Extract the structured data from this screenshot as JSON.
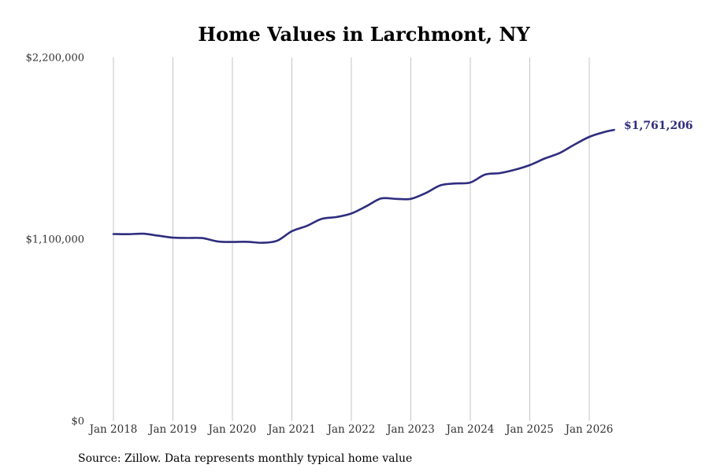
{
  "chart_data": {
    "type": "line",
    "title": "Home Values in Larchmont, NY",
    "xlabel": "",
    "ylabel": "",
    "ylim": [
      0,
      2200000
    ],
    "y_ticks": [
      {
        "value": 0,
        "label": "$0"
      },
      {
        "value": 1100000,
        "label": "$1,100,000"
      },
      {
        "value": 2200000,
        "label": "$2,200,000"
      }
    ],
    "x_ticks": [
      "Jan 2018",
      "Jan 2019",
      "Jan 2020",
      "Jan 2021",
      "Jan 2022",
      "Jan 2023",
      "Jan 2024",
      "Jan 2025",
      "Jan 2026"
    ],
    "x_start": "Jan 2018",
    "grid": "vertical",
    "series": [
      {
        "x": [
          "Jan 2018",
          "Apr 2018",
          "Jul 2018",
          "Oct 2018",
          "Jan 2019",
          "Apr 2019",
          "Jul 2019",
          "Oct 2019",
          "Jan 2020",
          "Apr 2020",
          "Jul 2020",
          "Oct 2020",
          "Jan 2021",
          "Apr 2021",
          "Jul 2021",
          "Oct 2021",
          "Jan 2022",
          "Apr 2022",
          "Jul 2022",
          "Oct 2022",
          "Jan 2023",
          "Apr 2023",
          "Jul 2023",
          "Oct 2023",
          "Jan 2024",
          "Apr 2024",
          "Jul 2024",
          "Oct 2024",
          "Jan 2025",
          "Apr 2025",
          "Jul 2025",
          "Oct 2025",
          "Jan 2026",
          "Apr 2026",
          "Jun 2026"
        ],
        "values": [
          1131000,
          1130000,
          1133000,
          1121000,
          1109000,
          1107000,
          1106000,
          1086000,
          1083000,
          1084000,
          1078000,
          1090000,
          1148000,
          1180000,
          1223000,
          1234000,
          1255000,
          1299000,
          1346000,
          1344000,
          1344000,
          1379000,
          1426000,
          1437000,
          1443000,
          1491000,
          1500000,
          1520000,
          1548000,
          1588000,
          1621000,
          1672000,
          1719000,
          1748000,
          1761206
        ]
      }
    ],
    "end_label": "$1,761,206",
    "line_color": "#2f2d7e"
  },
  "source_note": "Source: Zillow. Data represents monthly typical home value"
}
